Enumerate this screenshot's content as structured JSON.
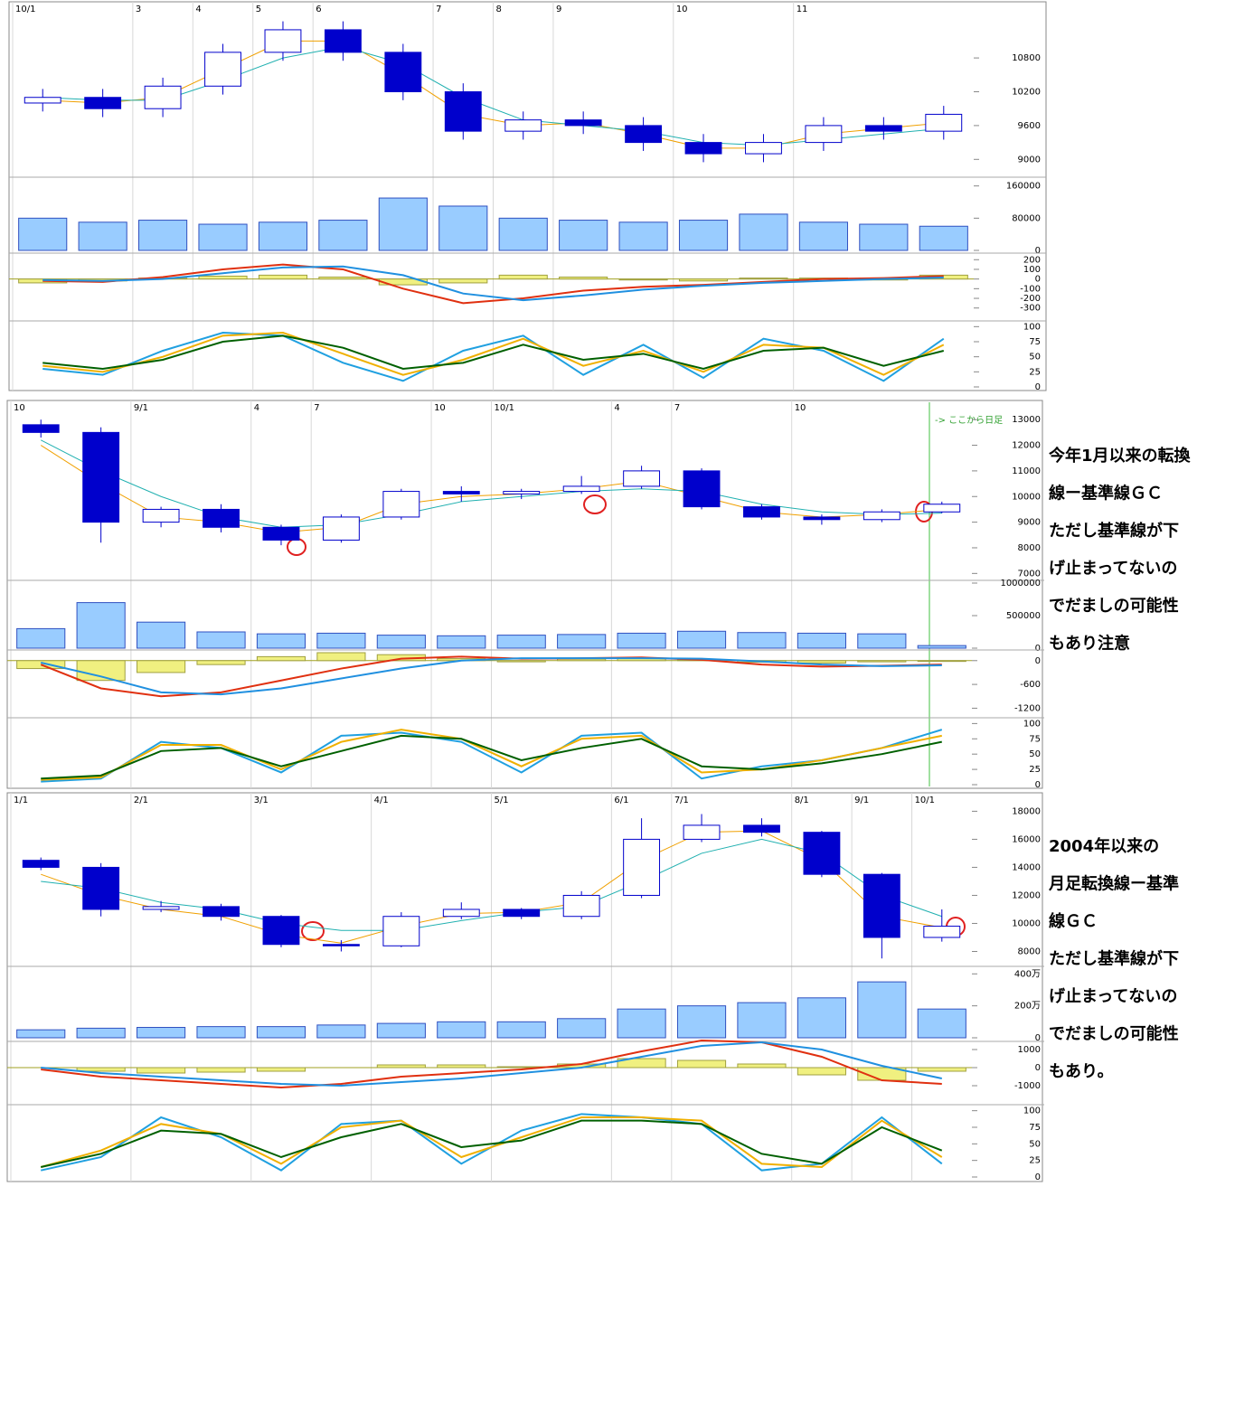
{
  "chart_data": [
    {
      "type": "candlestick",
      "categories": [
        "10/1",
        null,
        "3",
        "4",
        "5",
        "6",
        null,
        "7",
        "8",
        "9",
        null,
        "10",
        null,
        "11",
        null,
        null
      ],
      "open": [
        10000,
        10100,
        9900,
        10300,
        10900,
        11300,
        10900,
        10200,
        9500,
        9700,
        9600,
        9300,
        9100,
        9300,
        9600,
        9500
      ],
      "high": [
        10250,
        10250,
        10450,
        11050,
        11450,
        11450,
        11050,
        10350,
        9850,
        9850,
        9750,
        9450,
        9450,
        9750,
        9750,
        9950
      ],
      "low": [
        9850,
        9750,
        9750,
        10150,
        10750,
        10750,
        10050,
        9350,
        9350,
        9450,
        9150,
        8950,
        8950,
        9150,
        9350,
        9350
      ],
      "close": [
        10100,
        9900,
        10300,
        10900,
        11300,
        10900,
        10200,
        9500,
        9700,
        9600,
        9300,
        9100,
        9300,
        9600,
        9500,
        9800
      ],
      "series": [
        {
          "color": "#f0a000",
          "values": [
            10050,
            10000,
            10100,
            10600,
            11100,
            11100,
            10500,
            9800,
            9600,
            9650,
            9450,
            9200,
            9200,
            9450,
            9550,
            9650
          ]
        },
        {
          "color": "#20b0b0",
          "values": [
            10100,
            10050,
            10050,
            10400,
            10800,
            11000,
            10700,
            10100,
            9700,
            9600,
            9500,
            9300,
            9250,
            9350,
            9450,
            9550
          ]
        }
      ],
      "color": "#0000cc",
      "ylim": [
        8700,
        11700
      ],
      "yticks": [
        9000,
        9600,
        10200,
        10800
      ],
      "grid": true
    },
    {
      "type": "bar",
      "values": [
        80000,
        70000,
        75000,
        65000,
        70000,
        75000,
        130000,
        110000,
        80000,
        75000,
        70000,
        75000,
        90000,
        70000,
        65000,
        60000
      ],
      "color": "#99ccff",
      "ylim": [
        0,
        175000
      ],
      "yticks": [
        0,
        80000,
        160000
      ]
    },
    {
      "type": "combo",
      "values": [
        -40,
        -20,
        10,
        30,
        40,
        20,
        -60,
        -40,
        40,
        20,
        -10,
        -20,
        10,
        10,
        -10,
        40
      ],
      "color": "#f0f080",
      "series": [
        {
          "color": "#e03010",
          "values": [
            -20,
            -30,
            20,
            100,
            150,
            100,
            -100,
            -250,
            -200,
            -120,
            -80,
            -60,
            -30,
            0,
            10,
            30
          ]
        },
        {
          "color": "#2090e0",
          "values": [
            -10,
            -20,
            0,
            60,
            120,
            130,
            40,
            -150,
            -220,
            -170,
            -110,
            -70,
            -40,
            -20,
            0,
            15
          ]
        }
      ],
      "ylim": [
        -340,
        240
      ],
      "yticks": [
        200,
        100,
        0,
        -100,
        -200,
        -300
      ]
    },
    {
      "type": "line",
      "series": [
        {
          "color": "#20a0e0",
          "values": [
            30,
            20,
            60,
            90,
            85,
            40,
            10,
            60,
            85,
            20,
            70,
            15,
            80,
            60,
            10,
            80
          ]
        },
        {
          "color": "#f0b000",
          "values": [
            35,
            25,
            50,
            85,
            90,
            55,
            20,
            45,
            80,
            35,
            60,
            25,
            70,
            65,
            20,
            70
          ]
        },
        {
          "color": "#006000",
          "values": [
            40,
            30,
            45,
            75,
            85,
            65,
            30,
            40,
            70,
            45,
            55,
            30,
            60,
            65,
            35,
            60
          ]
        }
      ],
      "ylim": [
        0,
        105
      ],
      "yticks": [
        0,
        25,
        50,
        75,
        100
      ]
    },
    {
      "type": "candlestick",
      "categories": [
        "10",
        null,
        "9/1",
        null,
        "4",
        "7",
        null,
        "10",
        "10/1",
        null,
        "4",
        "7",
        null,
        "10",
        null,
        null
      ],
      "open": [
        12800,
        12500,
        9000,
        9500,
        8800,
        8300,
        9200,
        10200,
        10100,
        10200,
        10400,
        11000,
        9600,
        9200,
        9100,
        9400
      ],
      "high": [
        13000,
        12700,
        9600,
        9700,
        8900,
        9300,
        10300,
        10400,
        10300,
        10800,
        11200,
        11100,
        9700,
        9300,
        9500,
        9800
      ],
      "low": [
        12300,
        8200,
        8800,
        8600,
        8100,
        8200,
        9100,
        9800,
        9900,
        10100,
        10300,
        9500,
        9100,
        8900,
        9000,
        9350
      ],
      "close": [
        12500,
        9000,
        9500,
        8800,
        8300,
        9200,
        10200,
        10100,
        10200,
        10400,
        11000,
        9600,
        9200,
        9100,
        9400,
        9700
      ],
      "series": [
        {
          "color": "#f0a000",
          "values": [
            12000,
            10500,
            9200,
            9000,
            8600,
            8800,
            9700,
            10000,
            10100,
            10300,
            10600,
            10000,
            9400,
            9200,
            9300,
            9500
          ]
        },
        {
          "color": "#20b0b0",
          "values": [
            12200,
            11000,
            10000,
            9200,
            8800,
            8900,
            9300,
            9800,
            10000,
            10200,
            10300,
            10200,
            9700,
            9400,
            9300,
            9350
          ]
        }
      ],
      "color": "#0000cc",
      "ylim": [
        6800,
        13500
      ],
      "yticks": [
        7000,
        8000,
        9000,
        10000,
        11000,
        12000,
        13000
      ],
      "grid": true
    },
    {
      "type": "bar",
      "values": [
        300000,
        700000,
        400000,
        250000,
        220000,
        230000,
        200000,
        190000,
        200000,
        210000,
        230000,
        260000,
        240000,
        230000,
        220000,
        40000
      ],
      "color": "#99ccff",
      "ylim": [
        0,
        1000000
      ],
      "yticks": [
        0,
        500000,
        1000000
      ]
    },
    {
      "type": "combo",
      "values": [
        -200,
        -500,
        -300,
        -100,
        100,
        200,
        150,
        50,
        -30,
        40,
        60,
        20,
        -40,
        -60,
        -30,
        -20
      ],
      "color": "#f0f080",
      "series": [
        {
          "color": "#e03010",
          "values": [
            -100,
            -700,
            -900,
            -800,
            -500,
            -200,
            50,
            100,
            50,
            60,
            80,
            20,
            -100,
            -150,
            -130,
            -100
          ]
        },
        {
          "color": "#2090e0",
          "values": [
            -50,
            -400,
            -800,
            -850,
            -700,
            -450,
            -200,
            0,
            60,
            60,
            60,
            50,
            -20,
            -100,
            -140,
            -120
          ]
        }
      ],
      "ylim": [
        -1350,
        200
      ],
      "yticks": [
        0,
        -600,
        -1200
      ]
    },
    {
      "type": "line",
      "series": [
        {
          "color": "#20a0e0",
          "values": [
            5,
            10,
            70,
            60,
            20,
            80,
            85,
            70,
            20,
            80,
            85,
            10,
            30,
            40,
            60,
            90
          ]
        },
        {
          "color": "#f0b000",
          "values": [
            8,
            12,
            65,
            65,
            25,
            70,
            90,
            75,
            30,
            75,
            80,
            20,
            25,
            40,
            60,
            80
          ]
        },
        {
          "color": "#006000",
          "values": [
            10,
            15,
            55,
            60,
            30,
            55,
            80,
            75,
            40,
            60,
            75,
            30,
            25,
            35,
            50,
            70
          ]
        }
      ],
      "ylim": [
        0,
        105
      ],
      "yticks": [
        0,
        25,
        50,
        75,
        100
      ]
    },
    {
      "type": "candlestick",
      "categories": [
        "1/1",
        null,
        "2/1",
        null,
        "3/1",
        null,
        "4/1",
        null,
        "5/1",
        null,
        "6/1",
        "7/1",
        null,
        "8/1",
        "9/1",
        "10/1"
      ],
      "open": [
        14500,
        14000,
        11000,
        11200,
        10500,
        8500,
        8400,
        10500,
        11000,
        10500,
        12000,
        16000,
        17000,
        16500,
        13500,
        9000
      ],
      "high": [
        14700,
        14300,
        11600,
        11400,
        10600,
        8800,
        10800,
        11500,
        11100,
        12300,
        17500,
        17800,
        17500,
        16600,
        13600,
        11000
      ],
      "low": [
        13800,
        10500,
        10800,
        10200,
        8300,
        8000,
        8300,
        10300,
        10300,
        10300,
        11800,
        15800,
        16200,
        13300,
        7500,
        8700
      ],
      "close": [
        14000,
        11000,
        11200,
        10500,
        8500,
        8400,
        10500,
        11000,
        10500,
        12000,
        16000,
        17000,
        16500,
        13500,
        9000,
        9800
      ],
      "series": [
        {
          "color": "#f0a000",
          "values": [
            13500,
            12000,
            11000,
            10500,
            9200,
            8600,
            9800,
            10700,
            10800,
            11500,
            14500,
            16500,
            16600,
            14500,
            10500,
            9700
          ]
        },
        {
          "color": "#20b0b0",
          "values": [
            13000,
            12500,
            11500,
            11000,
            10000,
            9500,
            9500,
            10200,
            10800,
            11200,
            13000,
            15000,
            16000,
            15000,
            12000,
            10500
          ]
        }
      ],
      "color": "#0000cc",
      "ylim": [
        7000,
        18800
      ],
      "yticks": [
        8000,
        10000,
        12000,
        14000,
        16000,
        18000
      ],
      "grid": true
    },
    {
      "type": "bar",
      "values": [
        500000,
        600000,
        650000,
        700000,
        700000,
        800000,
        900000,
        1000000,
        1000000,
        1200000,
        1800000,
        2000000,
        2200000,
        2500000,
        3500000,
        1800000
      ],
      "color": "#99ccff",
      "ylim": [
        0,
        4300000
      ],
      "yticks": [
        0,
        {
          "value": 2000000,
          "label": "200万"
        },
        {
          "value": 4000000,
          "label": "400万"
        }
      ]
    },
    {
      "type": "combo",
      "values": [
        0,
        -200,
        -300,
        -250,
        -200,
        0,
        150,
        150,
        50,
        200,
        500,
        400,
        200,
        -400,
        -700,
        -200
      ],
      "color": "#f0f080",
      "series": [
        {
          "color": "#e03010",
          "values": [
            -100,
            -500,
            -700,
            -900,
            -1100,
            -900,
            -500,
            -300,
            -100,
            200,
            900,
            1500,
            1400,
            600,
            -700,
            -900
          ]
        },
        {
          "color": "#2090e0",
          "values": [
            0,
            -300,
            -500,
            -700,
            -900,
            -1000,
            -800,
            -600,
            -300,
            0,
            600,
            1200,
            1400,
            1000,
            100,
            -600
          ]
        }
      ],
      "ylim": [
        -1700,
        1300
      ],
      "yticks": [
        1000,
        0,
        -1000
      ]
    },
    {
      "type": "line",
      "series": [
        {
          "color": "#20a0e0",
          "values": [
            10,
            30,
            90,
            60,
            10,
            80,
            85,
            20,
            70,
            95,
            90,
            80,
            10,
            20,
            90,
            20
          ]
        },
        {
          "color": "#f0b000",
          "values": [
            15,
            40,
            80,
            65,
            20,
            75,
            85,
            30,
            60,
            90,
            90,
            85,
            20,
            15,
            85,
            30
          ]
        },
        {
          "color": "#006000",
          "values": [
            15,
            35,
            70,
            65,
            30,
            60,
            80,
            45,
            55,
            85,
            85,
            80,
            35,
            20,
            75,
            40
          ]
        }
      ],
      "ylim": [
        0,
        105
      ],
      "yticks": [
        0,
        25,
        50,
        75,
        100
      ]
    }
  ],
  "annotations": {
    "daily_marker": "-> ここから日足",
    "note_1": [
      "今年1月以来の転換",
      "線ー基準線ＧＣ",
      "ただし基準線が下",
      "げ止まってないの",
      "でだましの可能性",
      "もあり注意"
    ],
    "note_2": [
      "2004年以来の",
      "月足転換線ー基準",
      "線ＧＣ",
      "ただし基準線が下",
      "げ止まってないの",
      "でだましの可能性",
      "もあり。"
    ]
  }
}
